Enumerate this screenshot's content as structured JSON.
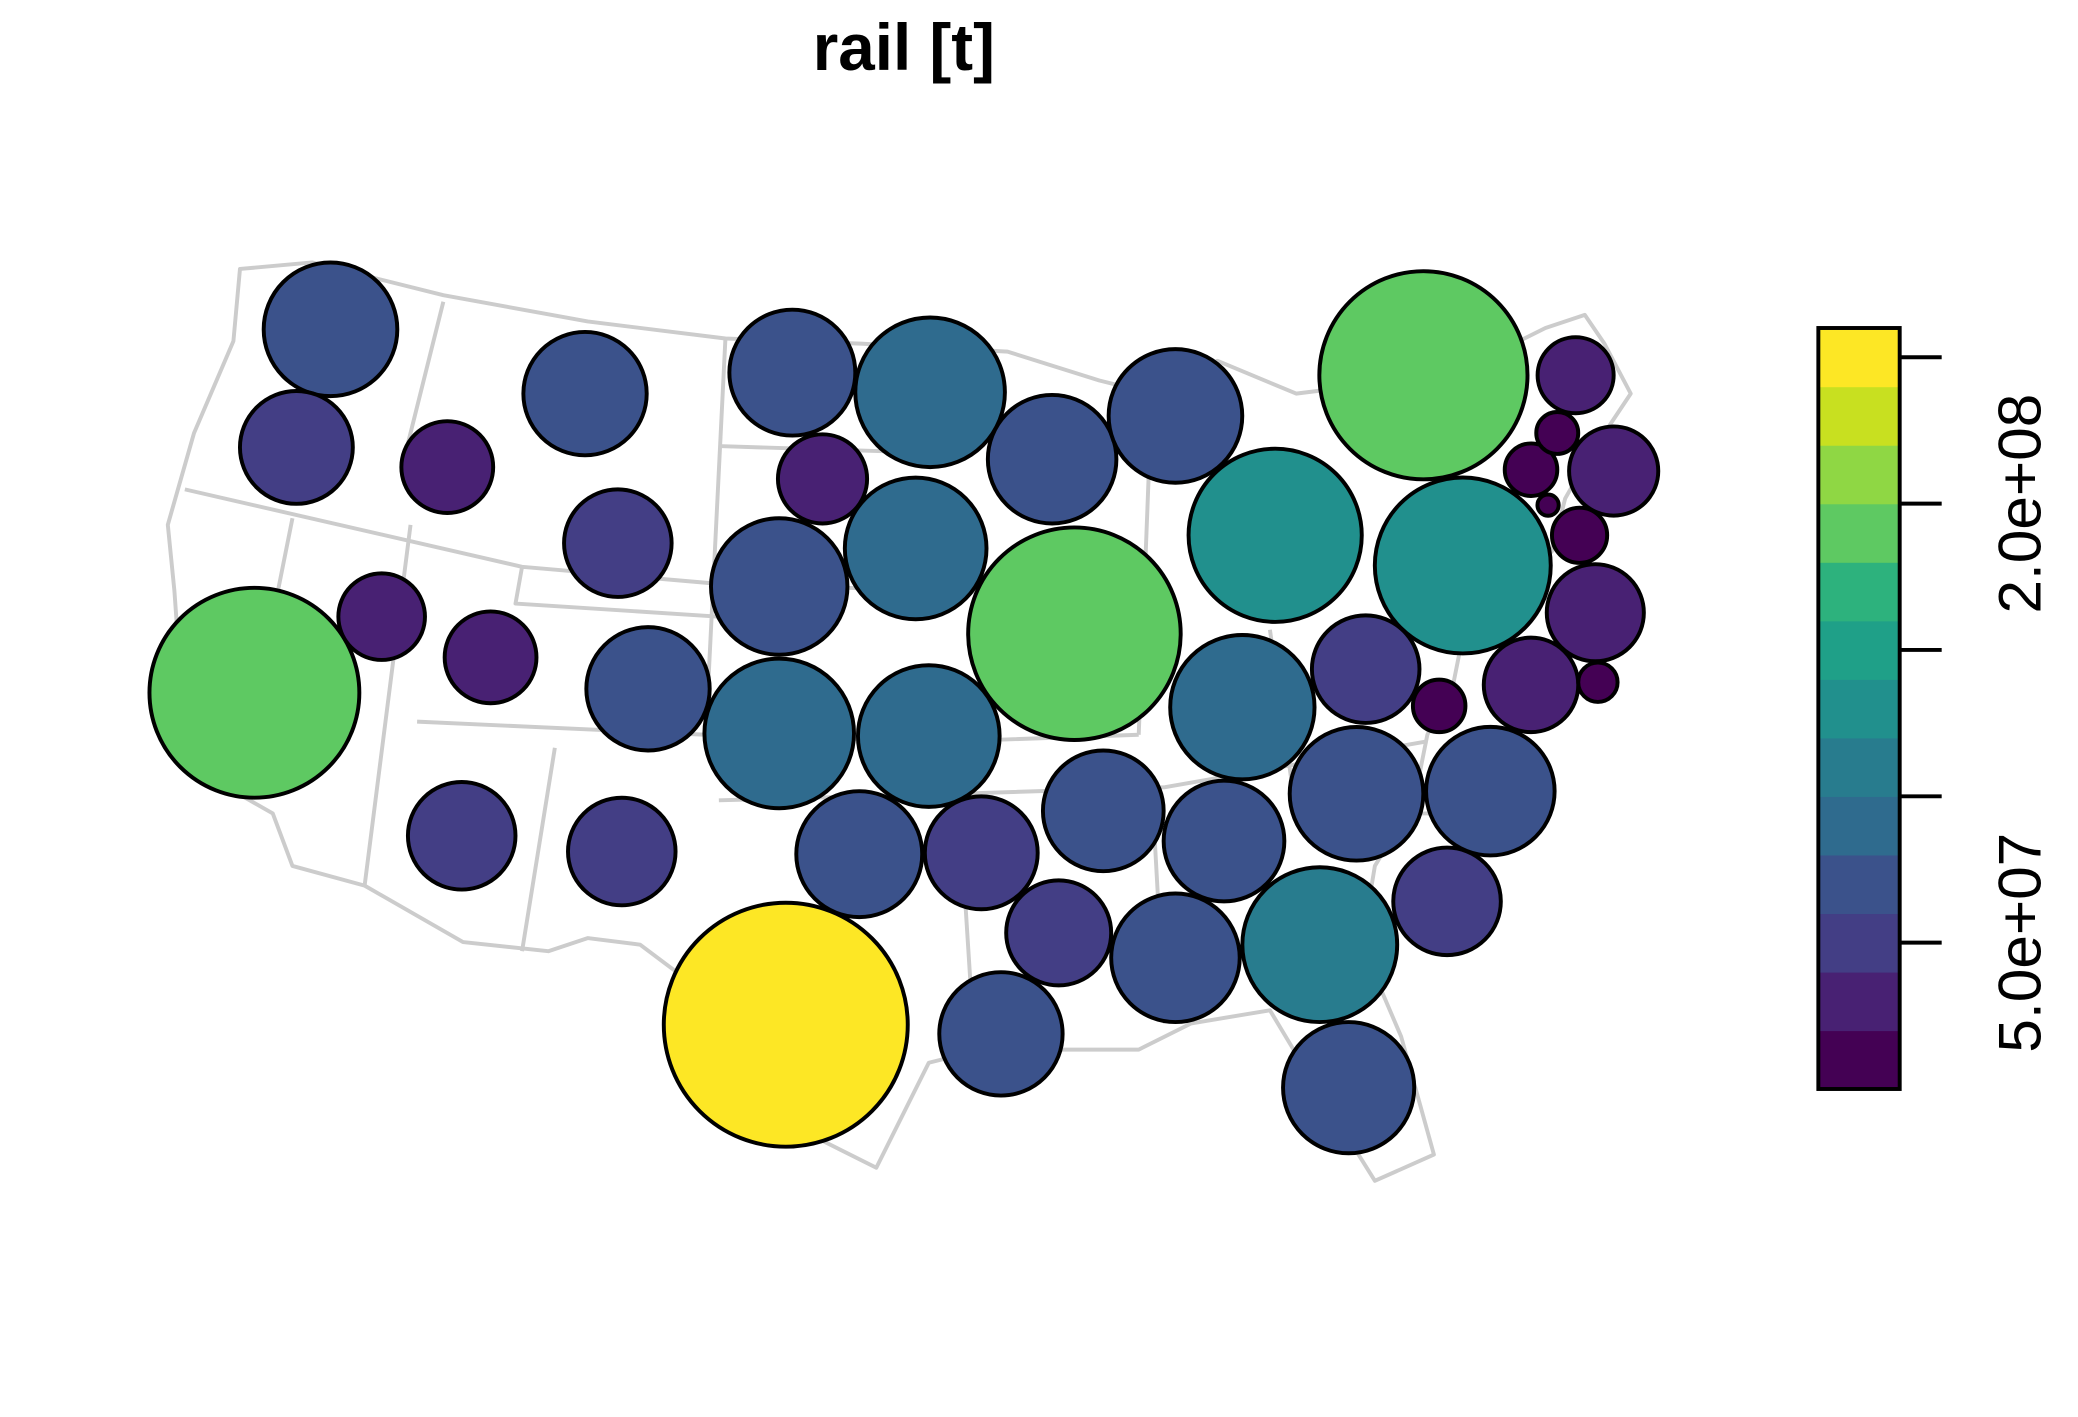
{
  "chart_data": {
    "type": "bubble-map",
    "title": "rail [t]",
    "values": [
      75000000,
      53500000,
      35400000,
      63900000,
      185000000,
      31500000,
      35400000,
      48600000,
      63900000,
      48600000,
      48600000,
      66600000,
      33400000,
      94000000,
      78200000,
      84300000,
      69400000,
      75000000,
      94000000,
      84300000,
      189700000,
      126000000,
      182000000,
      130000000,
      87500000,
      48600000,
      11600000,
      37500000,
      6500000,
      39600000,
      12800000,
      1900000,
      11600000,
      7400000,
      24300000,
      33400000,
      75000000,
      69400000,
      48600000,
      61200000,
      61200000,
      66600000,
      53500000,
      46300000,
      69400000,
      100700000,
      63900000,
      72300000,
      250000000
    ],
    "colorbar": {
      "lim": [
        0,
        260000000
      ],
      "colors": [
        "#440154",
        "#482173",
        "#433E85",
        "#3B528B",
        "#2F6B8E",
        "#287C8E",
        "#21908D",
        "#1FA088",
        "#2DB27D",
        "#5EC962",
        "#8FD744",
        "#C8E020",
        "#FDE725"
      ],
      "ticks": [
        {
          "value": 50000000,
          "label": "5.0e+07"
        },
        {
          "value": 100000000,
          "label": null
        },
        {
          "value": 150000000,
          "label": null
        },
        {
          "value": 200000000,
          "label": "2.0e+08"
        },
        {
          "value": 250000000,
          "label": null
        }
      ]
    }
  }
}
